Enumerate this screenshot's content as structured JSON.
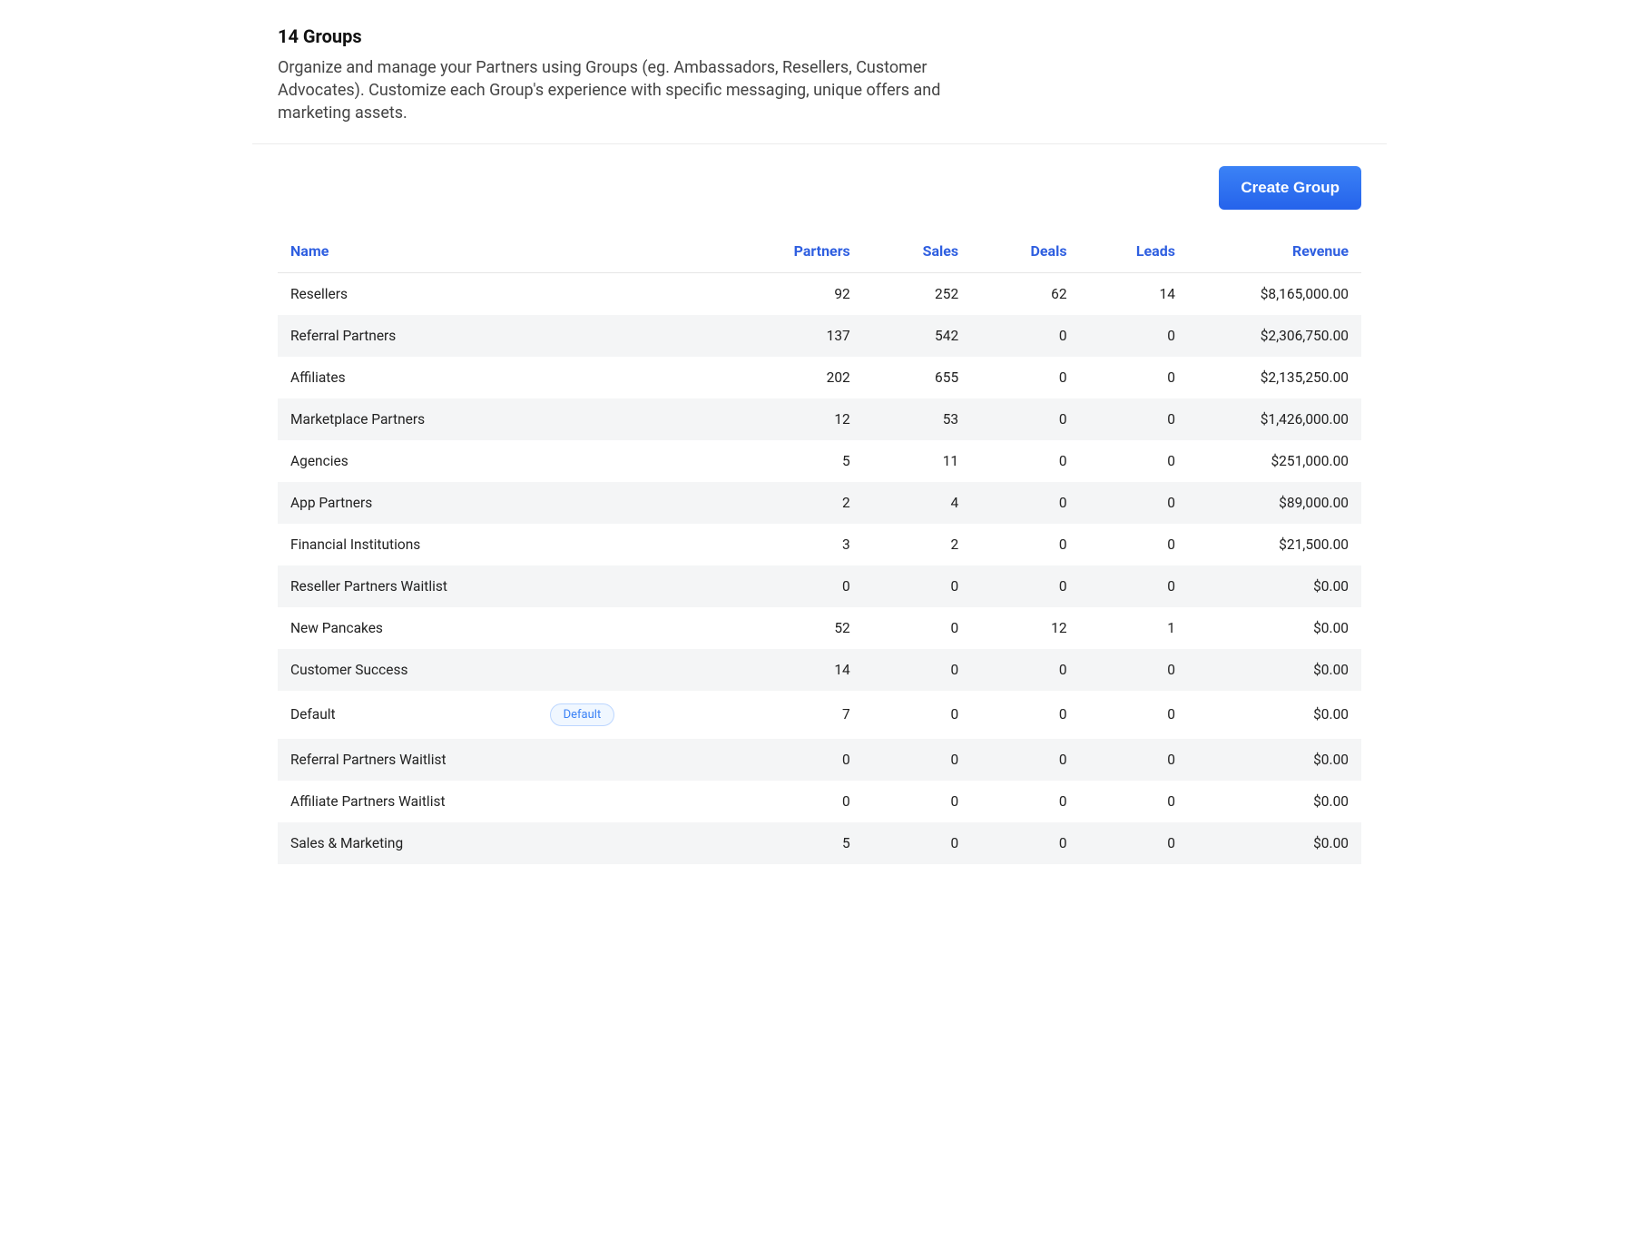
{
  "header": {
    "title": "14 Groups",
    "description": "Organize and manage your Partners using Groups (eg. Ambassadors, Resellers, Customer Advocates). Customize each Group's experience with specific messaging, unique offers and marketing assets."
  },
  "actions": {
    "create_group_label": "Create Group"
  },
  "table": {
    "columns": {
      "name": "Name",
      "partners": "Partners",
      "sales": "Sales",
      "deals": "Deals",
      "leads": "Leads",
      "revenue": "Revenue"
    },
    "default_badge_label": "Default",
    "rows": [
      {
        "name": "Resellers",
        "partners": "92",
        "sales": "252",
        "deals": "62",
        "leads": "14",
        "revenue": "$8,165,000.00",
        "is_default": false
      },
      {
        "name": "Referral Partners",
        "partners": "137",
        "sales": "542",
        "deals": "0",
        "leads": "0",
        "revenue": "$2,306,750.00",
        "is_default": false
      },
      {
        "name": "Affiliates",
        "partners": "202",
        "sales": "655",
        "deals": "0",
        "leads": "0",
        "revenue": "$2,135,250.00",
        "is_default": false
      },
      {
        "name": "Marketplace Partners",
        "partners": "12",
        "sales": "53",
        "deals": "0",
        "leads": "0",
        "revenue": "$1,426,000.00",
        "is_default": false
      },
      {
        "name": "Agencies",
        "partners": "5",
        "sales": "11",
        "deals": "0",
        "leads": "0",
        "revenue": "$251,000.00",
        "is_default": false
      },
      {
        "name": "App Partners",
        "partners": "2",
        "sales": "4",
        "deals": "0",
        "leads": "0",
        "revenue": "$89,000.00",
        "is_default": false
      },
      {
        "name": "Financial Institutions",
        "partners": "3",
        "sales": "2",
        "deals": "0",
        "leads": "0",
        "revenue": "$21,500.00",
        "is_default": false
      },
      {
        "name": "Reseller Partners Waitlist",
        "partners": "0",
        "sales": "0",
        "deals": "0",
        "leads": "0",
        "revenue": "$0.00",
        "is_default": false
      },
      {
        "name": "New Pancakes",
        "partners": "52",
        "sales": "0",
        "deals": "12",
        "leads": "1",
        "revenue": "$0.00",
        "is_default": false
      },
      {
        "name": "Customer Success",
        "partners": "14",
        "sales": "0",
        "deals": "0",
        "leads": "0",
        "revenue": "$0.00",
        "is_default": false
      },
      {
        "name": "Default",
        "partners": "7",
        "sales": "0",
        "deals": "0",
        "leads": "0",
        "revenue": "$0.00",
        "is_default": true
      },
      {
        "name": "Referral Partners Waitlist",
        "partners": "0",
        "sales": "0",
        "deals": "0",
        "leads": "0",
        "revenue": "$0.00",
        "is_default": false
      },
      {
        "name": "Affiliate Partners Waitlist",
        "partners": "0",
        "sales": "0",
        "deals": "0",
        "leads": "0",
        "revenue": "$0.00",
        "is_default": false
      },
      {
        "name": "Sales & Marketing",
        "partners": "5",
        "sales": "0",
        "deals": "0",
        "leads": "0",
        "revenue": "$0.00",
        "is_default": false
      }
    ]
  },
  "styling": {
    "primary_button_gradient_top": "#3b82f6",
    "primary_button_gradient_bottom": "#2563eb",
    "header_link_color": "#2f5fe0",
    "stripe_row_bg": "#f4f5f6",
    "border_color": "#e6e6e6",
    "badge_border": "#bcd6ff",
    "badge_bg": "#f0f7ff",
    "badge_text": "#3b82f6"
  }
}
